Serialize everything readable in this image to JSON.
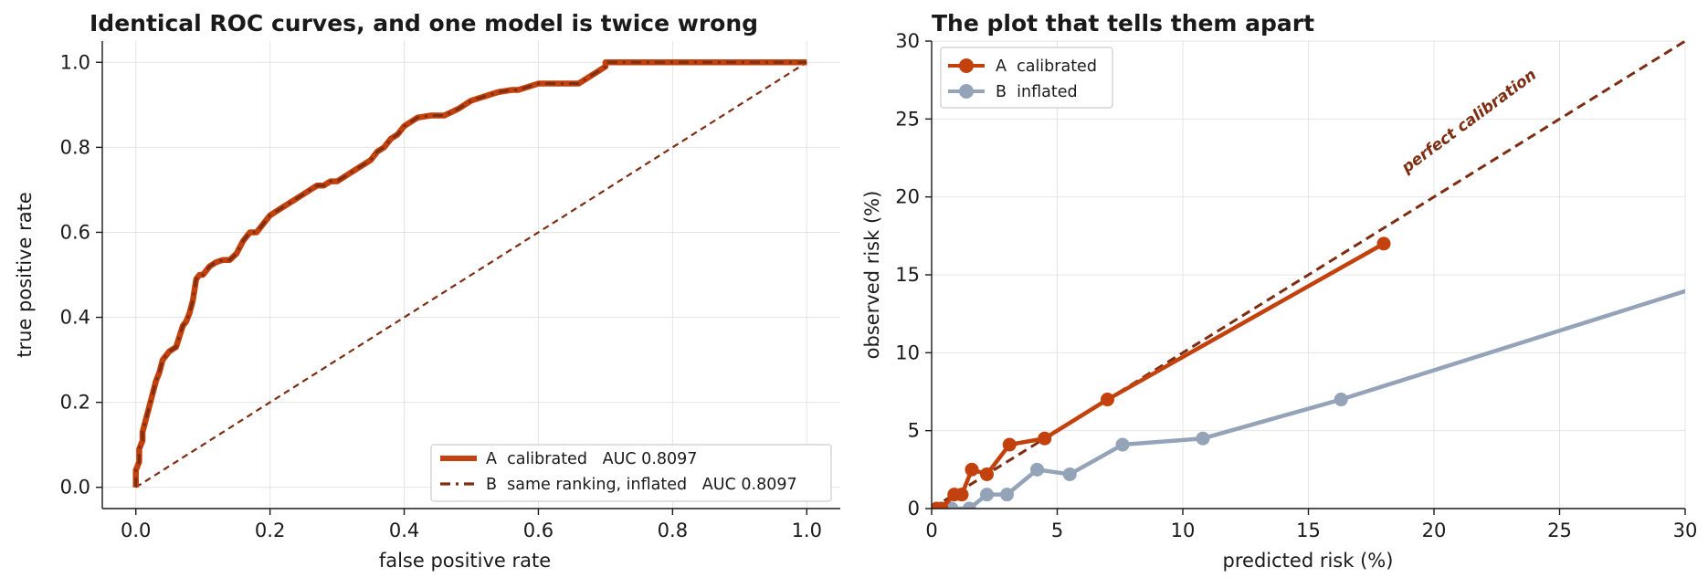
{
  "colors": {
    "calibrated": "#c2410c",
    "inflated": "#94a3b8",
    "dark": "#7c2d12"
  },
  "chart_data": [
    {
      "type": "line",
      "title": "Identical ROC curves, and one model is twice wrong",
      "xlabel": "false positive rate",
      "ylabel": "true positive rate",
      "xlim": [
        -0.05,
        1.05
      ],
      "ylim": [
        -0.05,
        1.05
      ],
      "xticks": [
        "0.0",
        "0.2",
        "0.4",
        "0.6",
        "0.8",
        "1.0"
      ],
      "yticks": [
        "0.0",
        "0.2",
        "0.4",
        "0.6",
        "0.8",
        "1.0"
      ],
      "grid": true,
      "legend_position": "lower right",
      "series": [
        {
          "name": "A  calibrated   AUC 0.8097",
          "style": "solid",
          "x": [
            0.0,
            0.0,
            0.005,
            0.005,
            0.01,
            0.01,
            0.015,
            0.02,
            0.025,
            0.03,
            0.035,
            0.04,
            0.045,
            0.05,
            0.06,
            0.07,
            0.075,
            0.08,
            0.085,
            0.09,
            0.095,
            0.1,
            0.11,
            0.12,
            0.13,
            0.14,
            0.15,
            0.16,
            0.17,
            0.18,
            0.19,
            0.2,
            0.21,
            0.22,
            0.23,
            0.24,
            0.25,
            0.26,
            0.27,
            0.28,
            0.29,
            0.3,
            0.31,
            0.32,
            0.33,
            0.34,
            0.35,
            0.36,
            0.37,
            0.38,
            0.39,
            0.4,
            0.41,
            0.42,
            0.44,
            0.46,
            0.48,
            0.5,
            0.52,
            0.54,
            0.56,
            0.57,
            0.58,
            0.6,
            0.62,
            0.64,
            0.66,
            0.67,
            0.68,
            0.69,
            0.7,
            0.7,
            0.75,
            0.8,
            0.9,
            1.0
          ],
          "y": [
            0.0,
            0.04,
            0.06,
            0.09,
            0.11,
            0.13,
            0.16,
            0.19,
            0.22,
            0.25,
            0.27,
            0.3,
            0.31,
            0.32,
            0.33,
            0.38,
            0.39,
            0.41,
            0.44,
            0.49,
            0.5,
            0.5,
            0.52,
            0.53,
            0.535,
            0.535,
            0.55,
            0.58,
            0.6,
            0.6,
            0.62,
            0.64,
            0.65,
            0.66,
            0.67,
            0.68,
            0.69,
            0.7,
            0.71,
            0.71,
            0.72,
            0.72,
            0.73,
            0.74,
            0.75,
            0.76,
            0.77,
            0.79,
            0.8,
            0.82,
            0.83,
            0.85,
            0.86,
            0.87,
            0.875,
            0.875,
            0.89,
            0.91,
            0.92,
            0.93,
            0.935,
            0.935,
            0.94,
            0.95,
            0.95,
            0.95,
            0.95,
            0.96,
            0.97,
            0.98,
            0.99,
            1.0,
            1.0,
            1.0,
            1.0,
            1.0
          ]
        },
        {
          "name": "B  same ranking, inflated   AUC 0.8097",
          "style": "dashed",
          "same_points_as": "A  calibrated   AUC 0.8097"
        },
        {
          "name": "",
          "style": "dashed-thin",
          "x": [
            0,
            1
          ],
          "y": [
            0,
            1
          ]
        }
      ]
    },
    {
      "type": "line",
      "title": "The plot that tells them apart",
      "xlabel": "predicted risk (%)",
      "ylabel": "observed risk (%)",
      "xlim": [
        0,
        30
      ],
      "ylim": [
        0,
        30
      ],
      "xticks": [
        "0",
        "5",
        "10",
        "15",
        "20",
        "25",
        "30"
      ],
      "yticks": [
        "0",
        "5",
        "10",
        "15",
        "20",
        "25",
        "30"
      ],
      "grid": true,
      "legend_position": "upper left",
      "annotation": "perfect calibration",
      "series": [
        {
          "name": "A  calibrated",
          "x": [
            0.2,
            0.4,
            0.9,
            1.2,
            1.6,
            2.2,
            3.1,
            4.5,
            7.0,
            18.0
          ],
          "y": [
            0.0,
            0.0,
            0.9,
            0.9,
            2.5,
            2.2,
            4.1,
            4.5,
            7.0,
            17.0
          ]
        },
        {
          "name": "B  inflated",
          "x": [
            0.4,
            0.8,
            1.5,
            2.2,
            3.0,
            4.2,
            5.5,
            7.6,
            10.8,
            16.3,
            36.0
          ],
          "y": [
            0.0,
            0.0,
            0.0,
            0.9,
            0.9,
            2.5,
            2.2,
            4.1,
            4.5,
            7.0,
            17.0
          ]
        },
        {
          "name": "perfect calibration",
          "x": [
            0,
            30
          ],
          "y": [
            0,
            30
          ]
        }
      ]
    }
  ]
}
